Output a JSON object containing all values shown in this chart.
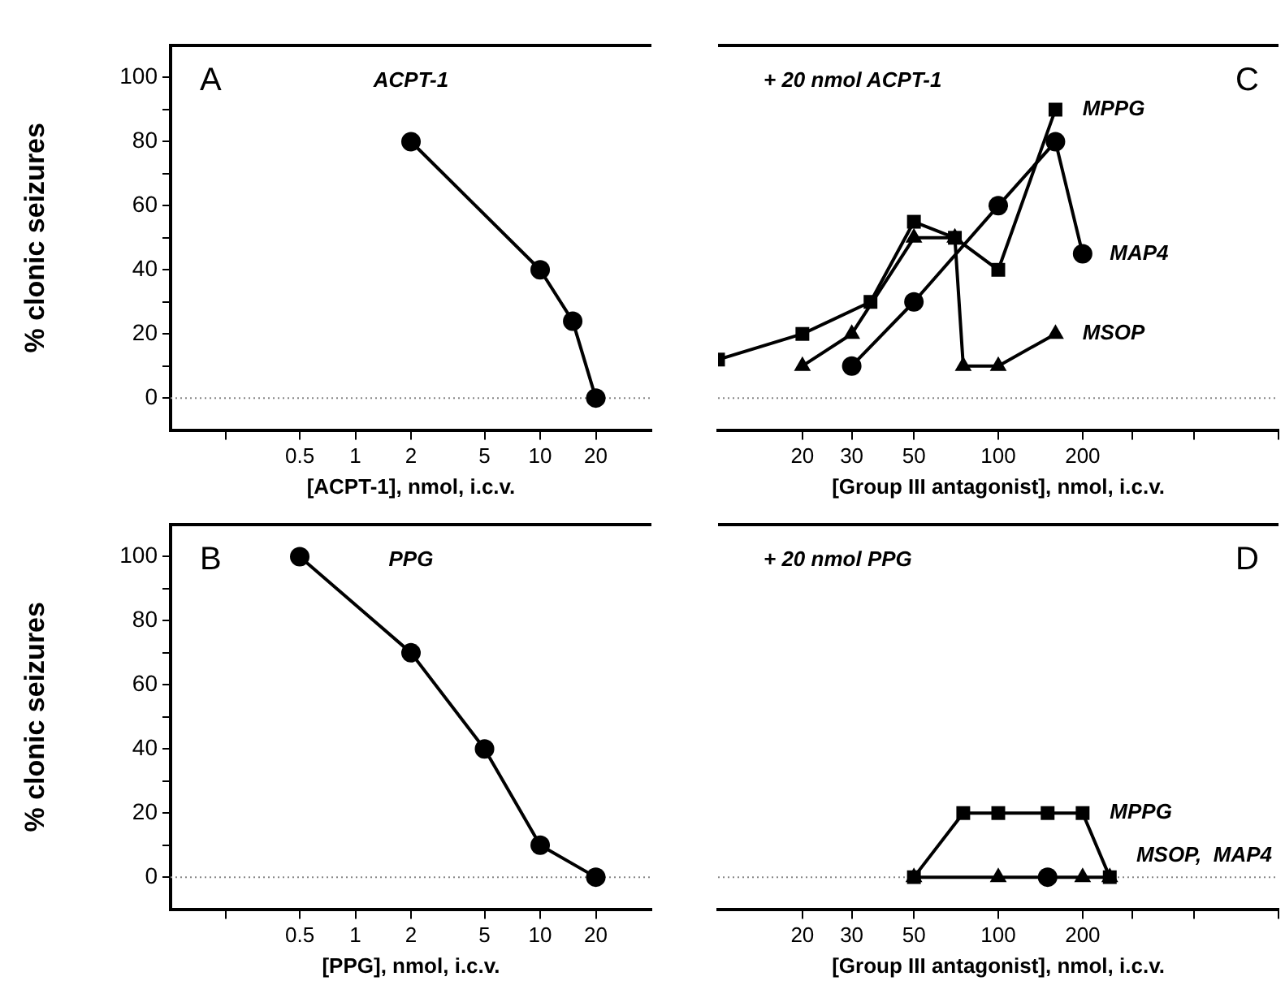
{
  "chart_data": [
    {
      "type": "line",
      "title": "ACPT-1",
      "xlabel": "[ACPT-1], nmol, i.c.v.",
      "ylabel": "% clonic seizures",
      "annotations": [
        "A"
      ],
      "log": "x",
      "grid": false,
      "legend": false,
      "marker": "circle",
      "line_style": "solid",
      "x": [
        2,
        10,
        15,
        20
      ],
      "series": [
        {
          "color": "#000000",
          "values": [
            80,
            40,
            24,
            0
          ]
        }
      ],
      "xlim": [
        0.1,
        40
      ],
      "xticks": [
        {
          "value": 0.2,
          "label": null
        },
        0.5,
        1,
        2,
        5,
        10,
        20
      ],
      "ylim": [
        -10,
        110
      ],
      "yticks": [
        0,
        {
          "value": 10,
          "label": null
        },
        20,
        {
          "value": 30,
          "label": null
        },
        40,
        {
          "value": 50,
          "label": null
        },
        60,
        {
          "value": 70,
          "label": null
        },
        80,
        {
          "value": 90,
          "label": null
        },
        100
      ],
      "ref_lines": [
        {
          "axis": "y",
          "value": 0,
          "label": null,
          "color": "#888888",
          "line_style": "dotted"
        }
      ]
    },
    {
      "type": "line",
      "title": "+ 20 nmol ACPT-1",
      "xlabel": "[Group III antagonist], nmol, i.c.v.",
      "annotations": [
        "C"
      ],
      "log": "x",
      "grid": false,
      "legend": false,
      "line_style": "solid",
      "tick_labels": "x",
      "series": [
        {
          "name": "MPPG",
          "color": "#000000",
          "marker": "square",
          "x": [
            10,
            20,
            35,
            50,
            70,
            100,
            160
          ],
          "values": [
            12,
            20,
            30,
            55,
            50,
            40,
            90
          ]
        },
        {
          "name": "MAP4",
          "color": "#000000",
          "marker": "circle",
          "x": [
            30,
            50,
            100,
            160,
            200
          ],
          "values": [
            10,
            30,
            60,
            80,
            45
          ]
        },
        {
          "name": "MSOP",
          "color": "#000000",
          "marker": "triangle",
          "x": [
            20,
            30,
            50,
            70,
            75,
            100,
            160
          ],
          "values": [
            10,
            20,
            50,
            50,
            10,
            10,
            20
          ]
        }
      ],
      "xlim": [
        10,
        1000
      ],
      "xticks": [
        20,
        30,
        50,
        100,
        200,
        {
          "value": 300,
          "label": null
        },
        {
          "value": 500,
          "label": null
        },
        {
          "value": 1000,
          "label": null
        }
      ],
      "ylim": [
        -10,
        110
      ],
      "yticks": [
        0,
        20,
        40,
        60,
        80,
        100
      ],
      "ref_lines": [
        {
          "axis": "y",
          "value": 0,
          "label": null,
          "color": "#888888",
          "line_style": "dotted"
        }
      ]
    },
    {
      "type": "line",
      "title": "PPG",
      "xlabel": "[PPG], nmol, i.c.v.",
      "ylabel": "% clonic seizures",
      "annotations": [
        "B"
      ],
      "log": "x",
      "grid": false,
      "legend": false,
      "marker": "circle",
      "line_style": "solid",
      "x": [
        0.5,
        2,
        5,
        10,
        20
      ],
      "series": [
        {
          "color": "#000000",
          "values": [
            100,
            70,
            40,
            10,
            0
          ]
        }
      ],
      "xlim": [
        0.1,
        40
      ],
      "xticks": [
        {
          "value": 0.2,
          "label": null
        },
        0.5,
        1,
        2,
        5,
        10,
        20
      ],
      "ylim": [
        -10,
        110
      ],
      "yticks": [
        0,
        {
          "value": 10,
          "label": null
        },
        20,
        {
          "value": 30,
          "label": null
        },
        40,
        {
          "value": 50,
          "label": null
        },
        60,
        {
          "value": 70,
          "label": null
        },
        80,
        {
          "value": 90,
          "label": null
        },
        100
      ],
      "ref_lines": [
        {
          "axis": "y",
          "value": 0,
          "label": null,
          "color": "#888888",
          "line_style": "dotted"
        }
      ]
    },
    {
      "type": "line",
      "title": "+ 20 nmol PPG",
      "xlabel": "[Group III antagonist], nmol, i.c.v.",
      "annotations": [
        "D",
        "MSOP,  MAP4"
      ],
      "log": "x",
      "grid": false,
      "legend": false,
      "line_style": "solid",
      "tick_labels": "x",
      "series": [
        {
          "name": "MPPG",
          "color": "#000000",
          "marker": "square",
          "x": [
            50,
            75,
            100,
            150,
            200,
            250
          ],
          "values": [
            0,
            20,
            20,
            20,
            20,
            0
          ]
        },
        {
          "color": "#000000",
          "marker": "triangle",
          "x": [
            50,
            100,
            200,
            250
          ],
          "values": [
            0,
            0,
            0,
            0
          ]
        },
        {
          "color": "#000000",
          "marker": "circle",
          "x": [
            150
          ],
          "values": [
            0
          ]
        }
      ],
      "xlim": [
        10,
        1000
      ],
      "xticks": [
        20,
        30,
        50,
        100,
        200,
        {
          "value": 300,
          "label": null
        },
        {
          "value": 500,
          "label": null
        },
        {
          "value": 1000,
          "label": null
        }
      ],
      "ylim": [
        -10,
        110
      ],
      "yticks": [
        0,
        20,
        40,
        60,
        80,
        100
      ],
      "ref_lines": [
        {
          "axis": "y",
          "value": 0,
          "label": null,
          "color": "#888888",
          "line_style": "dotted"
        }
      ]
    }
  ]
}
